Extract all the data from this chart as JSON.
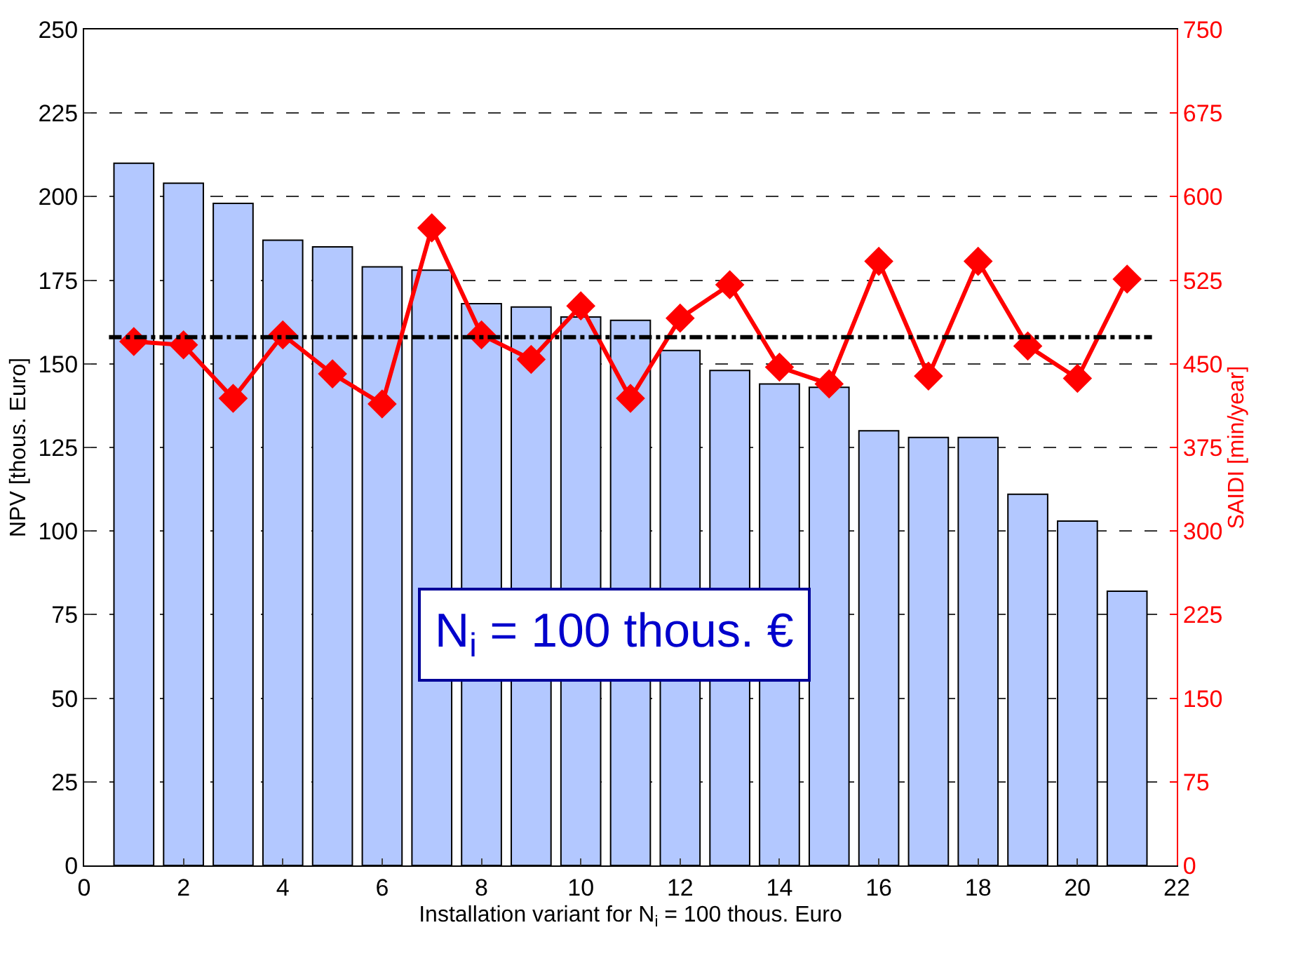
{
  "chart_data": {
    "type": "bar",
    "xlabel": "Installation variant for N$_{i}$ = 100 thous. Euro",
    "ylabel": "NPV [thous. Euro]",
    "y2label": "SAIDI [min/year]",
    "x": [
      1,
      2,
      3,
      4,
      5,
      6,
      7,
      8,
      9,
      10,
      11,
      12,
      13,
      14,
      15,
      16,
      17,
      18,
      19,
      20,
      21
    ],
    "series": [
      {
        "color": "#b3c8ff",
        "values": [
          210,
          204,
          198,
          187,
          185,
          179,
          178,
          168,
          167,
          164,
          163,
          154,
          148,
          144,
          143,
          130,
          128,
          128,
          111,
          103,
          82
        ]
      },
      {
        "type": "line",
        "axis": "y2",
        "color": "#ff0000",
        "marker": "diamond",
        "line_style": "solid",
        "values": [
          470,
          467,
          419,
          476,
          441,
          414,
          572,
          476,
          454,
          502,
          419,
          491,
          521,
          447,
          432,
          542,
          439,
          542,
          466,
          437,
          526
        ]
      }
    ],
    "xlim": [
      0,
      22
    ],
    "xticks": [
      0,
      2,
      4,
      6,
      8,
      10,
      12,
      14,
      16,
      18,
      20,
      22
    ],
    "ylim": [
      0,
      250
    ],
    "yticks": [
      0,
      25,
      50,
      75,
      100,
      125,
      150,
      175,
      200,
      225,
      250
    ],
    "y2lim": [
      0,
      750
    ],
    "y2ticks": [
      0,
      75,
      150,
      225,
      300,
      375,
      450,
      525,
      600,
      675,
      750
    ],
    "ref_lines": [
      {
        "axis": "y",
        "value": 158,
        "color": "#000000",
        "line_style": "dashdot"
      }
    ],
    "annotations": [
      "N$_{i}$ = 100 thous. €"
    ],
    "grid": "y"
  }
}
